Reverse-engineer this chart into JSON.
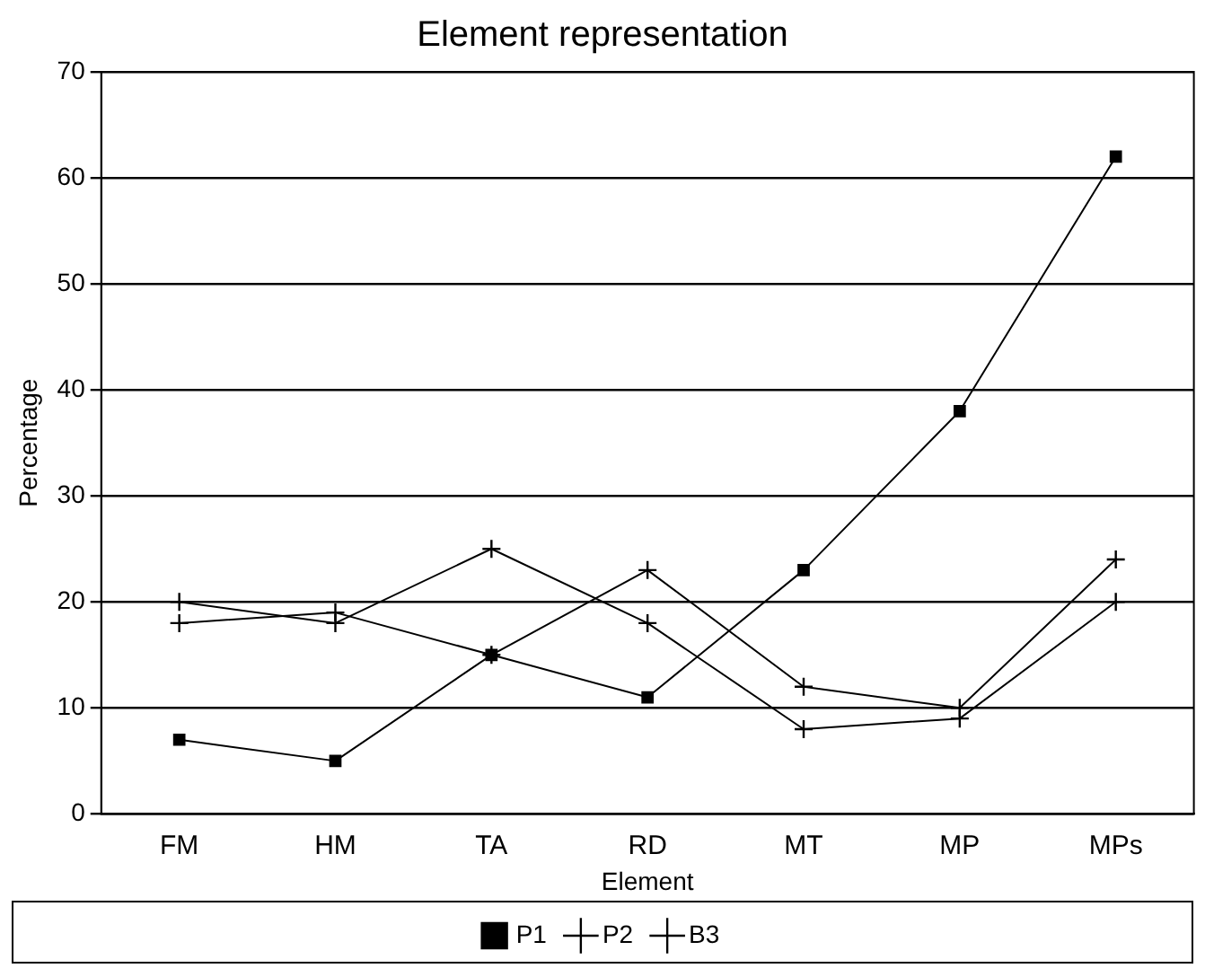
{
  "chart_data": {
    "type": "line",
    "title": "Element representation",
    "xlabel": "Element",
    "ylabel": "Percentage",
    "categories": [
      "FM",
      "HM",
      "TA",
      "RD",
      "MT",
      "MP",
      "MPs"
    ],
    "series": [
      {
        "name": "P1",
        "color": "#000000",
        "marker": "square",
        "values": [
          7,
          5,
          15,
          11,
          23,
          38,
          62
        ]
      },
      {
        "name": "P2",
        "color": "#000000",
        "marker": "cross",
        "values": [
          18,
          19,
          15,
          23,
          12,
          10,
          24
        ]
      },
      {
        "name": "B3",
        "color": "#000000",
        "marker": "cross",
        "values": [
          20,
          18,
          25,
          18,
          8,
          9,
          20
        ]
      }
    ],
    "ylim": [
      0,
      70
    ],
    "yticks": [
      0,
      10,
      20,
      30,
      40,
      50,
      60,
      70
    ],
    "grid": "y",
    "legend": "bottom",
    "line_style": "solid"
  }
}
